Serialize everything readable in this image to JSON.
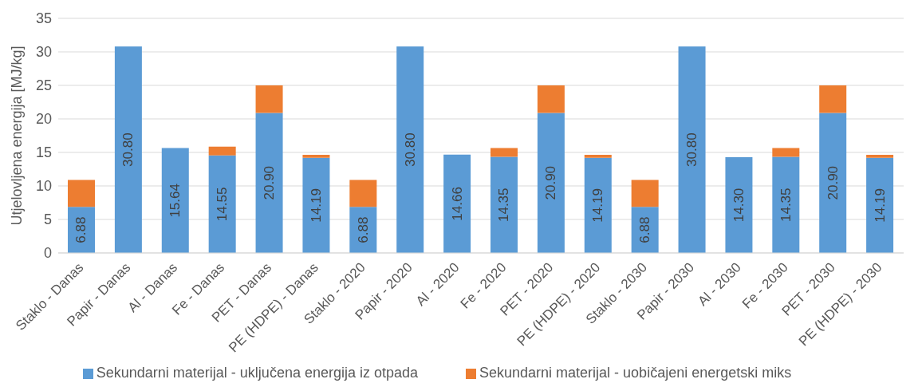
{
  "chart_data": {
    "type": "bar",
    "stacked": true,
    "ylabel": "Utjelovljena energija [MJ/kg]",
    "ylim": [
      0,
      35
    ],
    "yticks": [
      0,
      5,
      10,
      15,
      20,
      25,
      30,
      35
    ],
    "grid": "y",
    "legend": "bottom",
    "categories": [
      "Staklo - Danas",
      "Papir - Danas",
      "Al - Danas",
      "Fe - Danas",
      "PET - Danas",
      "PE (HDPE) - Danas",
      "Staklo - 2020",
      "Papir - 2020",
      "Al - 2020",
      "Fe - 2020",
      "PET - 2020",
      "PE (HDPE) - 2020",
      "Staklo - 2030",
      "Papir - 2030",
      "Al - 2030",
      "Fe - 2030",
      "PET - 2030",
      "PE (HDPE) - 2030"
    ],
    "series": [
      {
        "name": "Sekundarni materijal - uključena energija iz otpada",
        "color": "#5b9bd5",
        "values": [
          6.88,
          30.8,
          15.64,
          14.55,
          20.9,
          14.19,
          6.88,
          30.8,
          14.66,
          14.35,
          20.9,
          14.19,
          6.88,
          30.8,
          14.3,
          14.35,
          20.9,
          14.19
        ],
        "value_labels": [
          "6.88",
          "30.80",
          "15.64",
          "14.55",
          "20.90",
          "14.19",
          "6.88",
          "30.80",
          "14.66",
          "14.35",
          "20.90",
          "14.19",
          "6.88",
          "30.80",
          "14.30",
          "14.35",
          "20.90",
          "14.19"
        ]
      },
      {
        "name": "Sekundarni materijal - uobičajeni energetski miks",
        "color": "#ed7d31",
        "values": [
          4.0,
          0,
          0,
          1.3,
          4.1,
          0.45,
          4.0,
          0,
          0,
          1.3,
          4.1,
          0.45,
          4.0,
          0,
          0,
          1.3,
          4.1,
          0.45
        ]
      }
    ]
  }
}
